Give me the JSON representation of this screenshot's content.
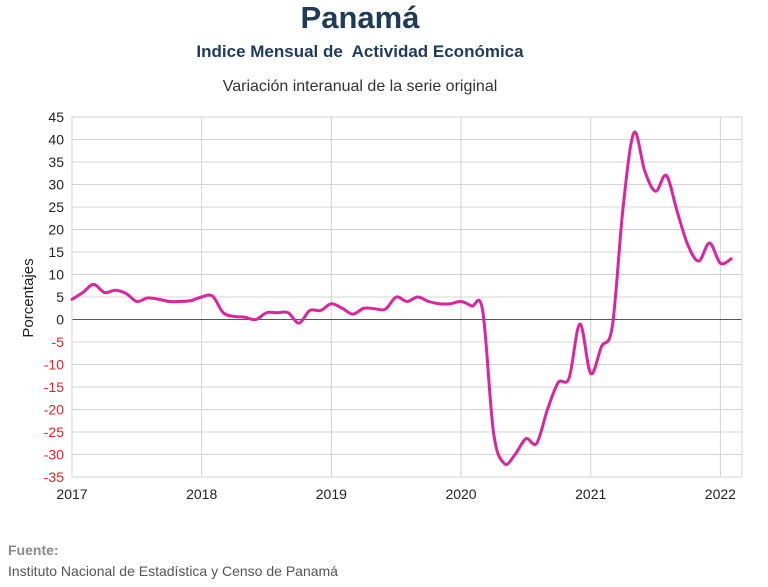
{
  "header": {
    "title": "Panamá",
    "subtitle": "Indice Mensual de  Actividad Económica",
    "description": "Variación interanual de la serie original"
  },
  "source": {
    "label": "Fuente:",
    "text": "Instituto Nacional de Estadística y Censo de Panamá"
  },
  "colors": {
    "series": "#d9269f",
    "negative_tick": "#e8202a",
    "positive_tick": "#222222",
    "grid": "#d4d4d4",
    "zero_line": "#555555"
  },
  "chart_data": {
    "type": "line",
    "title": "Variación interanual de la serie original",
    "xlabel": "",
    "ylabel": "Porcentajes",
    "ylim": [
      -35,
      45
    ],
    "xlim": [
      "2017-01",
      "2022-03"
    ],
    "yticks": [
      45,
      40,
      35,
      30,
      25,
      20,
      15,
      10,
      5,
      0,
      -5,
      -10,
      -15,
      -20,
      -25,
      -30,
      -35
    ],
    "xticks": [
      "2017",
      "2018",
      "2019",
      "2020",
      "2021",
      "2022"
    ],
    "grid": true,
    "legend": "none",
    "series": [
      {
        "name": "",
        "x": [
          "2017-01",
          "2017-02",
          "2017-03",
          "2017-04",
          "2017-05",
          "2017-06",
          "2017-07",
          "2017-08",
          "2017-09",
          "2017-10",
          "2017-11",
          "2017-12",
          "2018-01",
          "2018-02",
          "2018-03",
          "2018-04",
          "2018-05",
          "2018-06",
          "2018-07",
          "2018-08",
          "2018-09",
          "2018-10",
          "2018-11",
          "2018-12",
          "2019-01",
          "2019-02",
          "2019-03",
          "2019-04",
          "2019-05",
          "2019-06",
          "2019-07",
          "2019-08",
          "2019-09",
          "2019-10",
          "2019-11",
          "2019-12",
          "2020-01",
          "2020-02",
          "2020-03",
          "2020-04",
          "2020-05",
          "2020-06",
          "2020-07",
          "2020-08",
          "2020-09",
          "2020-10",
          "2020-11",
          "2020-12",
          "2021-01",
          "2021-02",
          "2021-03",
          "2021-04",
          "2021-05",
          "2021-06",
          "2021-07",
          "2021-08",
          "2021-09",
          "2021-10",
          "2021-11",
          "2021-12",
          "2022-01",
          "2022-02"
        ],
        "values": [
          4.5,
          6.0,
          7.8,
          6.0,
          6.5,
          5.8,
          4.0,
          4.8,
          4.5,
          4.0,
          4.0,
          4.2,
          5.0,
          5.2,
          1.5,
          0.7,
          0.5,
          0.0,
          1.5,
          1.5,
          1.5,
          -0.8,
          2.0,
          2.0,
          3.5,
          2.5,
          1.2,
          2.5,
          2.4,
          2.3,
          5.0,
          4.0,
          5.0,
          4.0,
          3.5,
          3.5,
          4.0,
          3.0,
          2.0,
          -25.0,
          -32.0,
          -30.0,
          -26.5,
          -27.5,
          -20.0,
          -14.0,
          -13.0,
          -1.0,
          -12.0,
          -6.0,
          -1.5,
          25.0,
          41.5,
          33.0,
          28.5,
          32.0,
          24.0,
          16.5,
          13.0,
          17.0,
          12.5,
          13.5
        ]
      }
    ]
  }
}
